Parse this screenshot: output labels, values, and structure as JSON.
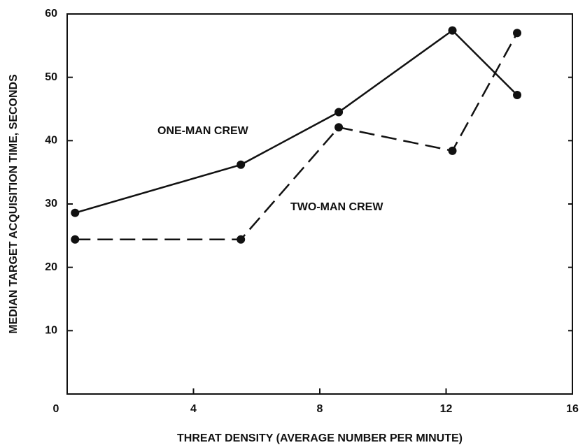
{
  "chart_data": {
    "type": "line",
    "xlabel": "THREAT DENSITY (AVERAGE NUMBER PER MINUTE)",
    "ylabel": "MEDIAN TARGET ACQUISITION TIME, SECONDS",
    "xlim": [
      0,
      16
    ],
    "xticks": [
      0,
      4,
      8,
      12,
      16
    ],
    "ylim": [
      0,
      60
    ],
    "yticks": [
      10,
      20,
      30,
      40,
      50,
      60
    ],
    "annotations": [
      "ONE-MAN CREW",
      "TWO-MAN CREW"
    ],
    "series": [
      {
        "name": "ONE-MAN CREW",
        "color": "#111111",
        "style": "solid",
        "x": [
          0.25,
          5.5,
          8.6,
          12.2,
          14.25
        ],
        "values": [
          28.6,
          36.2,
          44.5,
          57.4,
          47.2
        ]
      },
      {
        "name": "TWO-MAN CREW",
        "color": "#111111",
        "style": "dashed",
        "x": [
          0.25,
          5.5,
          8.6,
          12.2,
          14.25
        ],
        "values": [
          24.4,
          24.4,
          42.1,
          38.4,
          57.0
        ]
      }
    ]
  }
}
